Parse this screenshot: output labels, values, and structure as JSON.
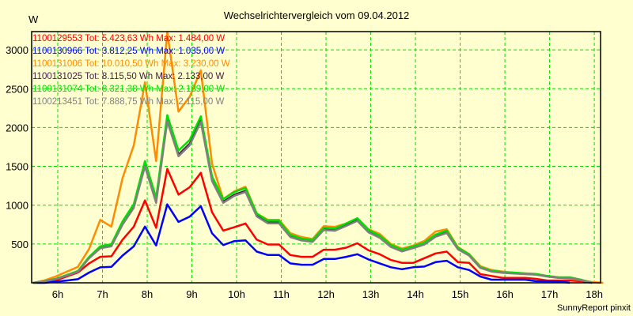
{
  "chart_data": {
    "type": "line",
    "title": "Wechselrichtervergleich vom 09.04.2012",
    "ylabel": "W",
    "xlabel": "",
    "footer": "SunnyReport pinxit",
    "xlim": [
      5.416,
      18.14
    ],
    "ylim": [
      0,
      3235
    ],
    "grid": true,
    "legend_placement": "top-left",
    "x_start": 5.45,
    "x_step": 0.25,
    "x_ticks": [
      6,
      7,
      8,
      9,
      10,
      11,
      12,
      13,
      14,
      15,
      16,
      17,
      18
    ],
    "x_tick_labels": [
      "6h",
      "7h",
      "8h",
      "9h",
      "10h",
      "11h",
      "12h",
      "13h",
      "14h",
      "15h",
      "16h",
      "17h",
      "18h"
    ],
    "y_ticks": [
      500,
      1000,
      1500,
      2000,
      2500,
      3000
    ],
    "y_tick_labels": [
      "500",
      "1000",
      "1500",
      "2000",
      "2500",
      "3000"
    ],
    "series": [
      {
        "name": "1100129553 Tot: 5.423,63 Wh Max: 1.484,00 W",
        "color": "#ff0000",
        "values": [
          0,
          14,
          30,
          81,
          132,
          250,
          335,
          342,
          555,
          723,
          1061,
          709,
          1467,
          1136,
          1231,
          1416,
          909,
          672,
          716,
          764,
          555,
          493,
          493,
          358,
          335,
          335,
          426,
          426,
          453,
          510,
          419,
          368,
          294,
          257,
          256,
          317,
          378,
          402,
          267,
          257,
          112,
          88,
          64,
          64,
          64,
          51,
          30,
          30,
          30,
          20,
          0
        ]
      },
      {
        "name": "1100130966 Tot: 3.812,25 Wh Max: 1.035,00 W",
        "color": "#0000ff",
        "values": [
          0,
          0,
          14,
          30,
          47,
          132,
          199,
          206,
          351,
          470,
          723,
          480,
          1010,
          784,
          852,
          987,
          638,
          486,
          537,
          547,
          402,
          358,
          358,
          250,
          233,
          233,
          307,
          307,
          335,
          368,
          301,
          250,
          200,
          175,
          200,
          210,
          267,
          284,
          200,
          165,
          81,
          41,
          41,
          41,
          41,
          20,
          20,
          17,
          0
        ]
      },
      {
        "name": "1100131006 Tot: 10.010,50 Wh Max: 3.230,00 W",
        "color": "#ff8c00",
        "values": [
          0,
          30,
          81,
          142,
          206,
          436,
          811,
          723,
          1349,
          1771,
          2582,
          1568,
          3230,
          2204,
          2396,
          2735,
          1534,
          1078,
          1179,
          1237,
          892,
          811,
          811,
          640,
          590,
          565,
          730,
          720,
          764,
          831,
          690,
          630,
          500,
          440,
          480,
          540,
          660,
          690,
          460,
          370,
          215,
          165,
          145,
          130,
          120,
          110,
          85,
          65,
          55,
          35,
          10,
          0
        ]
      },
      {
        "name": "1100131025 Tot: 8.115,50 Wh Max: 2.133,00 W",
        "color": "#402040",
        "values": [
          0,
          19,
          49,
          97,
          146,
          322,
          455,
          480,
          765,
          980,
          1520,
          1055,
          2100,
          1650,
          1790,
          2090,
          1325,
          1045,
          1135,
          1185,
          865,
          775,
          775,
          600,
          552,
          533,
          690,
          680,
          742,
          808,
          660,
          588,
          470,
          410,
          455,
          500,
          600,
          650,
          438,
          355,
          195,
          148,
          132,
          125,
          116,
          110,
          84,
          68,
          68,
          38,
          0
        ]
      },
      {
        "name": "1100131074 Tot: 8.321,38 Wh Max: 2.189,00 W",
        "color": "#00e000",
        "values": [
          0,
          20,
          51,
          101,
          152,
          335,
          470,
          497,
          791,
          1014,
          1568,
          1095,
          2160,
          1703,
          1839,
          2143,
          1369,
          1078,
          1170,
          1220,
          892,
          800,
          800,
          620,
          570,
          550,
          710,
          700,
          764,
          831,
          682,
          608,
          487,
          426,
          470,
          517,
          622,
          672,
          453,
          368,
          203,
          155,
          139,
          132,
          122,
          115,
          88,
          71,
          71,
          41,
          0
        ]
      },
      {
        "name": "1100213451 Tot: 7.888,75 Wh Max: 2.115,00 W",
        "color": "#808080",
        "values": [
          0,
          18,
          47,
          94,
          141,
          315,
          445,
          470,
          750,
          965,
          1500,
          1030,
          2080,
          1630,
          1770,
          2070,
          1310,
          1030,
          1120,
          1170,
          855,
          765,
          765,
          590,
          545,
          527,
          680,
          670,
          732,
          798,
          650,
          580,
          462,
          404,
          448,
          493,
          593,
          642,
          432,
          350,
          192,
          145,
          128,
          120,
          112,
          104,
          80,
          64,
          64,
          36,
          0
        ]
      }
    ]
  }
}
